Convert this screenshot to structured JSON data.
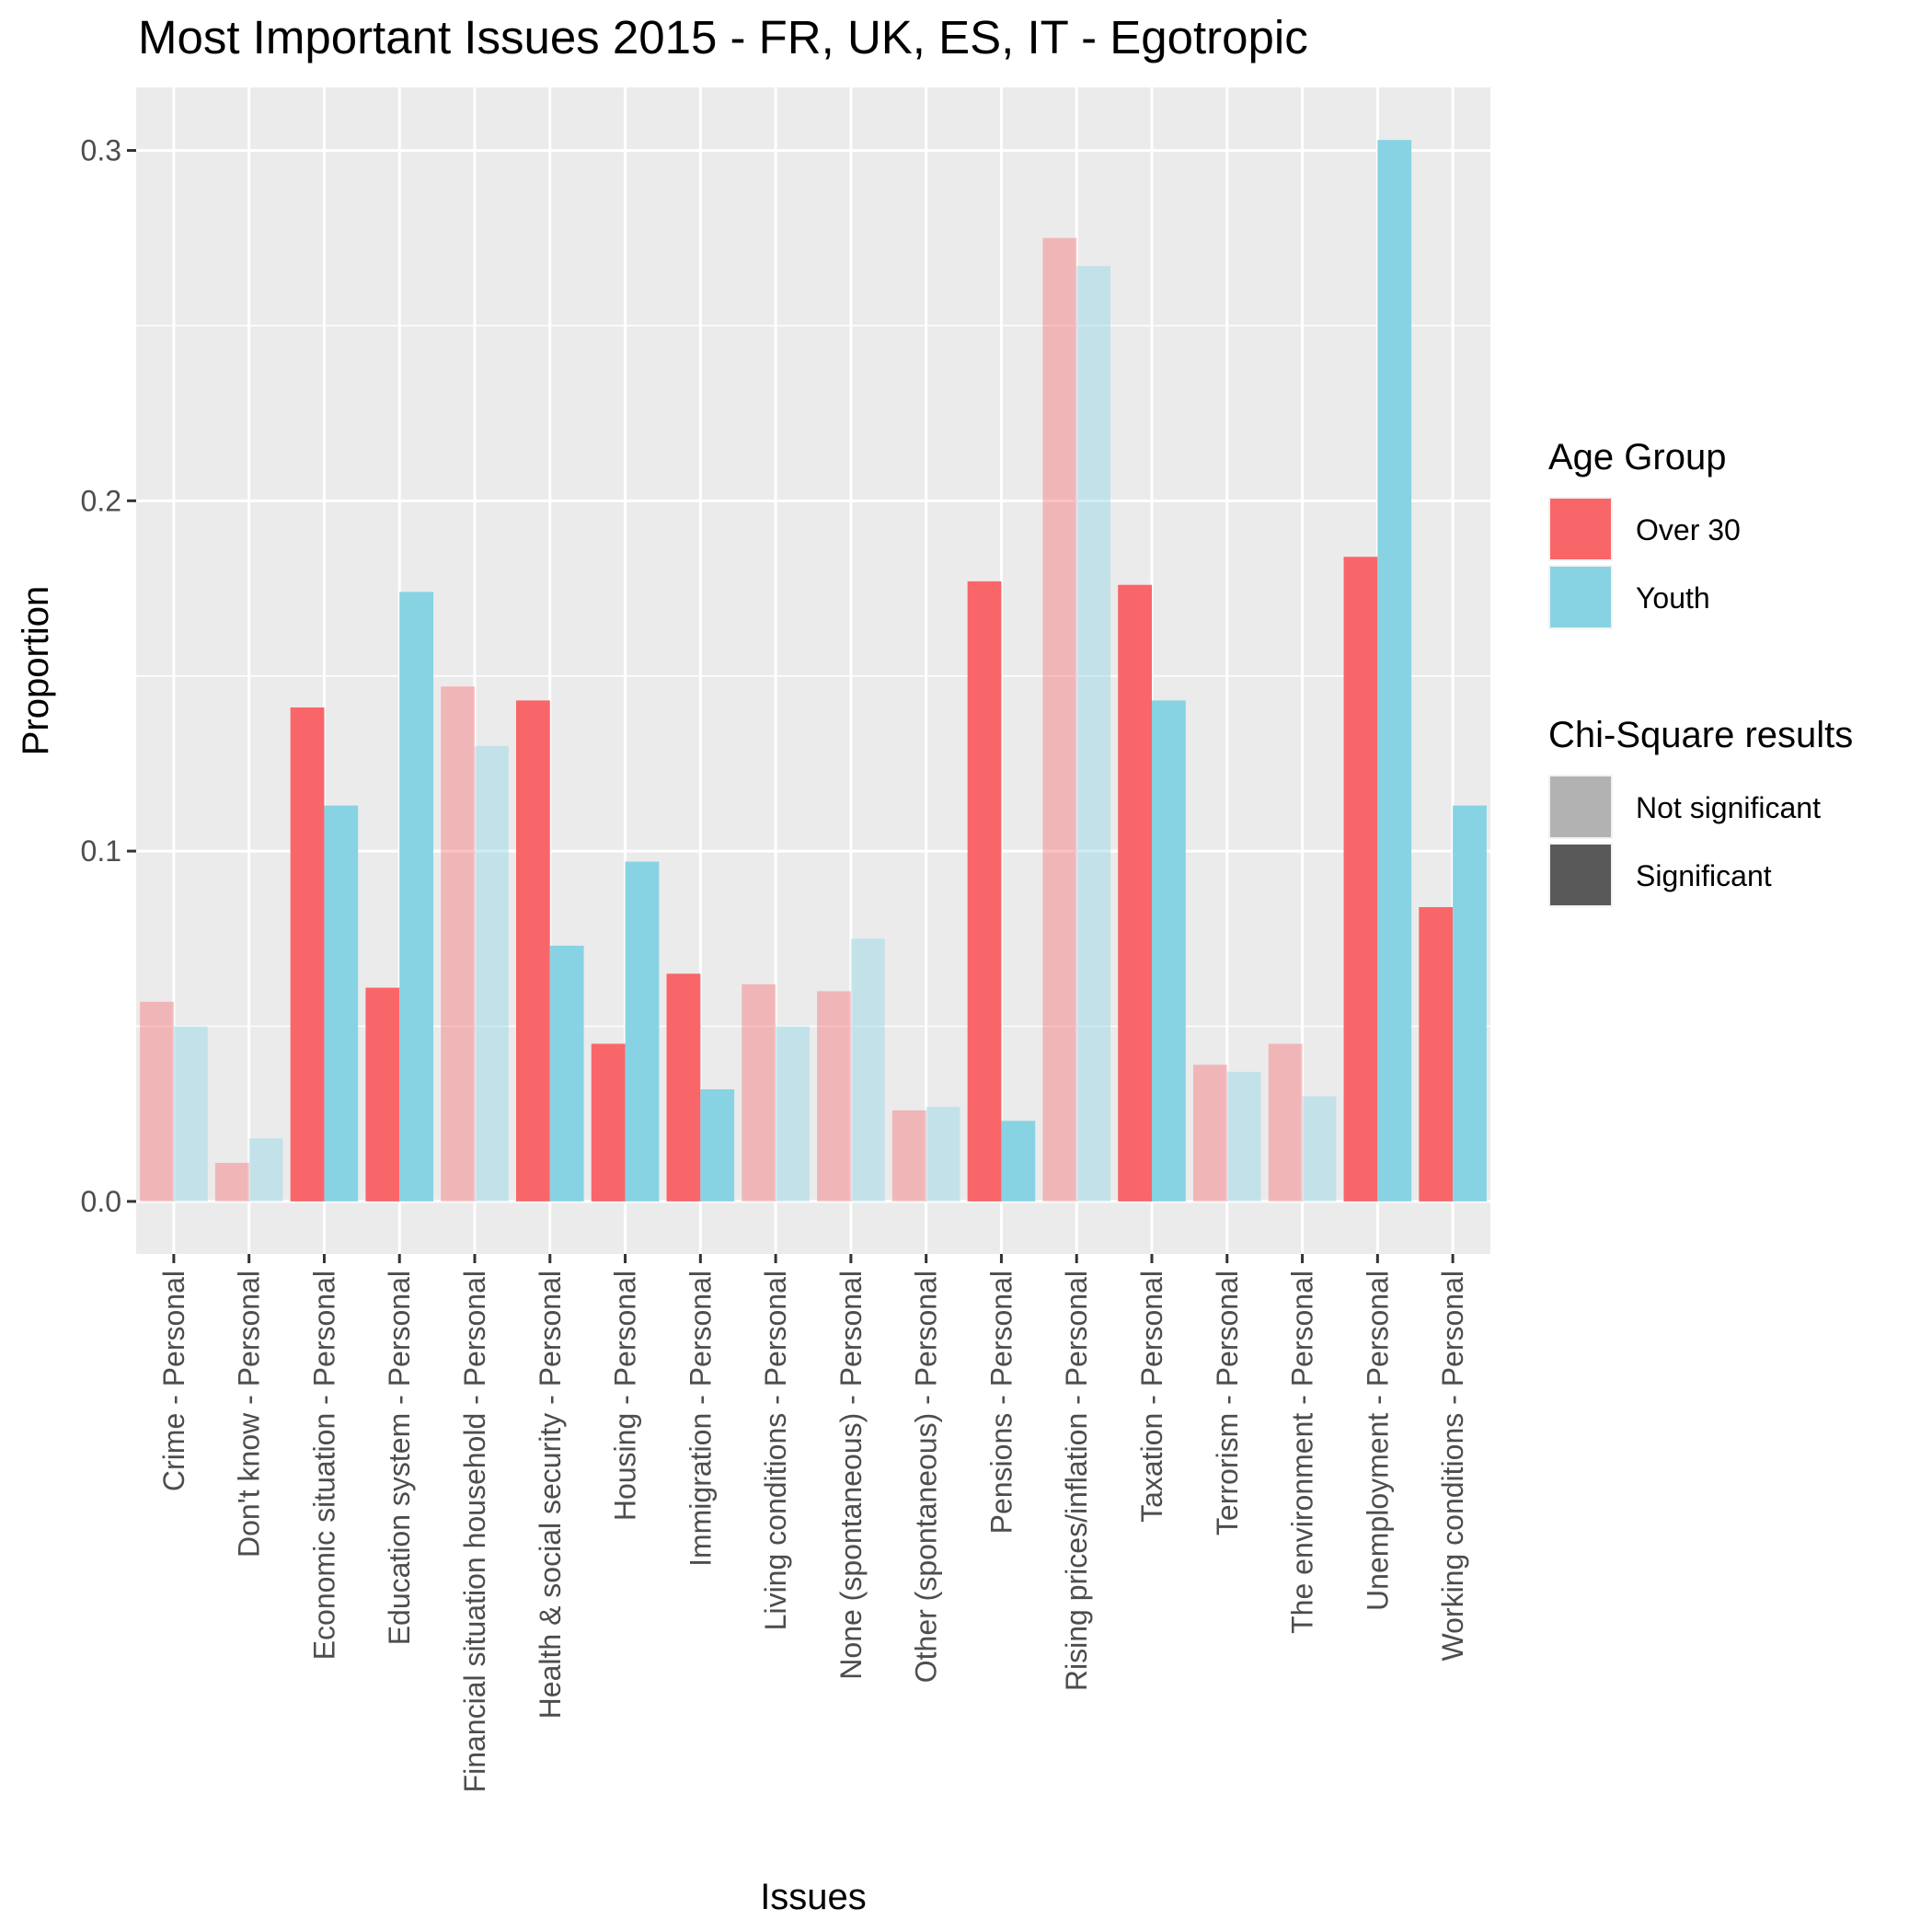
{
  "chart_data": {
    "type": "bar",
    "title": "Most Important Issues 2015 - FR, UK, ES, IT - Egotropic",
    "xlabel": "Issues",
    "ylabel": "Proportion",
    "ylim": [
      -0.015,
      0.318
    ],
    "yticks": [
      0.0,
      0.1,
      0.2,
      0.3
    ],
    "ytick_labels": [
      "0.0",
      "0.1",
      "0.2",
      "0.3"
    ],
    "grid": true,
    "categories": [
      "Crime - Personal",
      "Don't know - Personal",
      "Economic situation - Personal",
      "Education system - Personal",
      "Financial situation household - Personal",
      "Health & social security - Personal",
      "Housing - Personal",
      "Immigration - Personal",
      "Living conditions - Personal",
      "None (spontaneous) - Personal",
      "Other (spontaneous) - Personal",
      "Pensions - Personal",
      "Rising prices/inflation - Personal",
      "Taxation - Personal",
      "Terrorism - Personal",
      "The environment - Personal",
      "Unemployment - Personal",
      "Working conditions - Personal"
    ],
    "series": [
      {
        "name": "Over 30",
        "color": "#f8666a",
        "values": [
          0.057,
          0.011,
          0.141,
          0.061,
          0.147,
          0.143,
          0.045,
          0.065,
          0.062,
          0.06,
          0.026,
          0.177,
          0.275,
          0.176,
          0.039,
          0.045,
          0.184,
          0.084
        ]
      },
      {
        "name": "Youth",
        "color": "#88d3e3",
        "values": [
          0.05,
          0.018,
          0.113,
          0.174,
          0.13,
          0.073,
          0.097,
          0.032,
          0.05,
          0.075,
          0.027,
          0.023,
          0.267,
          0.143,
          0.037,
          0.03,
          0.303,
          0.113
        ]
      }
    ],
    "significant": [
      false,
      false,
      true,
      true,
      false,
      true,
      true,
      true,
      false,
      false,
      false,
      true,
      false,
      true,
      false,
      false,
      true,
      true
    ],
    "legend": {
      "placement": "right",
      "age_group_title": "Age Group",
      "chi_title": "Chi-Square results",
      "chi_items": [
        {
          "label": "Not significant",
          "color": "#b2b2b2"
        },
        {
          "label": "Significant",
          "color": "#595959"
        }
      ]
    },
    "colors": {
      "panel": "#ebebeb",
      "grid_major": "#ffffff",
      "tick": "#333333"
    }
  }
}
